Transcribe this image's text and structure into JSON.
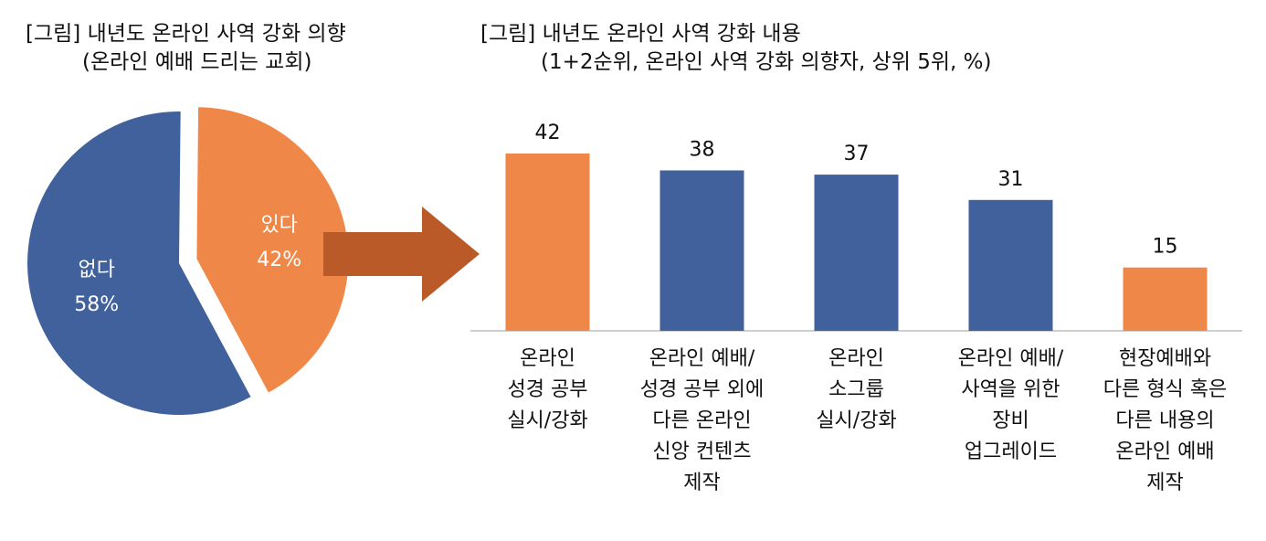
{
  "titles": {
    "left_line1": "[그림] 내년도 온라인 사역 강화 의향",
    "left_line2": "(온라인 예배 드리는 교회)",
    "right_line1": "[그림] 내년도 온라인 사역 강화 내용",
    "right_line2": "(1+2순위, 온라인 사역 강화 의향자, 상위 5위, %)"
  },
  "colors": {
    "orange": "#EF8748",
    "blue": "#41619C",
    "arrow": "#BA5A29",
    "axis": "#BFBFBF"
  },
  "chart_data": [
    {
      "type": "pie",
      "title": "[그림] 내년도 온라인 사역 강화 의향",
      "subtitle": "(온라인 예배 드리는 교회)",
      "slices": [
        {
          "label": "있다",
          "value": 42,
          "value_label": "42%",
          "color": "#EF8748",
          "exploded": true
        },
        {
          "label": "없다",
          "value": 58,
          "value_label": "58%",
          "color": "#41619C",
          "exploded": false
        }
      ]
    },
    {
      "type": "bar",
      "title": "[그림] 내년도 온라인 사역 강화 내용",
      "subtitle": "(1+2순위, 온라인 사역 강화 의향자, 상위 5위, %)",
      "categories": [
        "온라인\n성경 공부\n실시/강화",
        "온라인 예배/\n성경 공부 외에\n다른 온라인\n신앙 컨텐츠\n제작",
        "온라인\n소그룹\n실시/강화",
        "온라인 예배/\n사역을 위한\n장비\n업그레이드",
        "현장예배와\n다른 형식 혹은\n다른 내용의\n온라인 예배\n제작"
      ],
      "values": [
        42,
        38,
        37,
        31,
        15
      ],
      "value_labels": [
        "42",
        "38",
        "37",
        "31",
        "15"
      ],
      "bar_colors": [
        "#EF8748",
        "#41619C",
        "#41619C",
        "#41619C",
        "#EF8748"
      ],
      "ylim": [
        0,
        42
      ],
      "grid": false,
      "legend": "none"
    }
  ]
}
